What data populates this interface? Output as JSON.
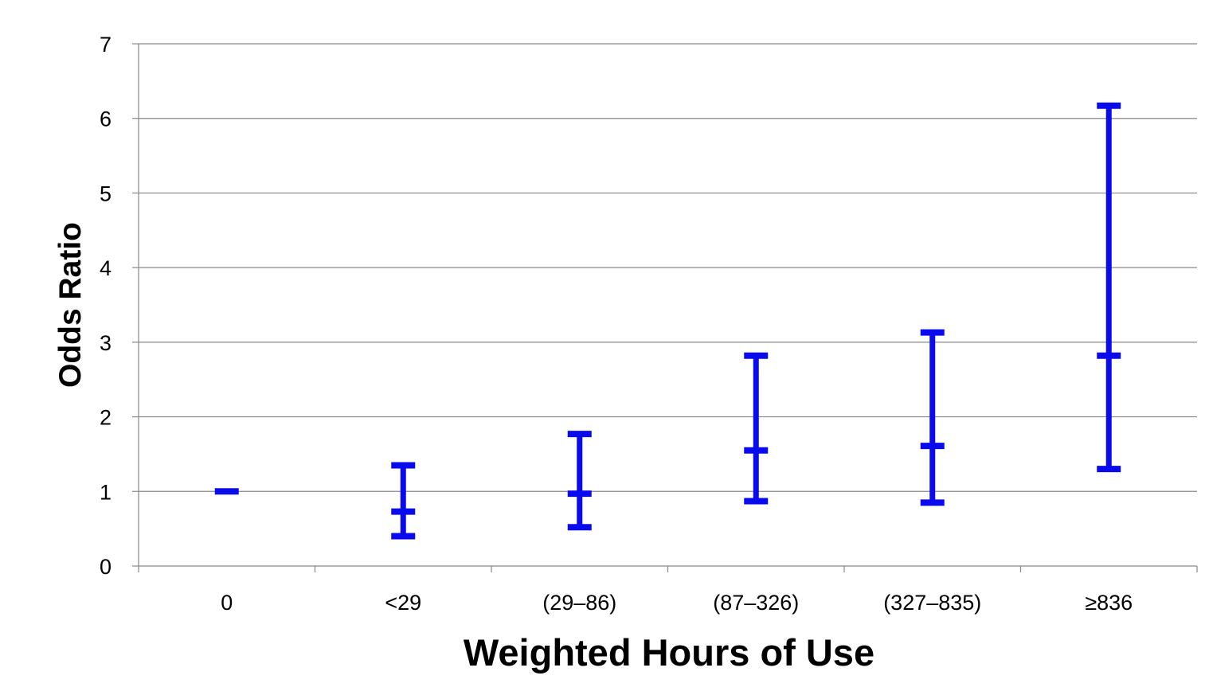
{
  "chart_data": {
    "type": "errorbar",
    "xlabel": "Weighted Hours of Use",
    "ylabel": "Odds Ratio",
    "categories": [
      "0",
      "<29",
      "(29–86)",
      "(87–326)",
      "(327–835)",
      "≥836"
    ],
    "series": [
      {
        "odds_ratio": [
          1.0,
          0.73,
          0.97,
          1.55,
          1.61,
          2.82
        ],
        "lower": [
          1.0,
          0.4,
          0.52,
          0.87,
          0.85,
          1.3
        ],
        "upper": [
          1.0,
          1.35,
          1.77,
          2.82,
          3.13,
          6.17
        ],
        "color": "#0a0aee"
      }
    ],
    "ylim": [
      0,
      7
    ],
    "yticks": [
      0,
      1,
      2,
      3,
      4,
      5,
      6,
      7
    ],
    "grid": true,
    "legend": "none"
  },
  "colors": {
    "bar": "#0a0aee",
    "grid": "#888888",
    "axis": "#888888"
  }
}
